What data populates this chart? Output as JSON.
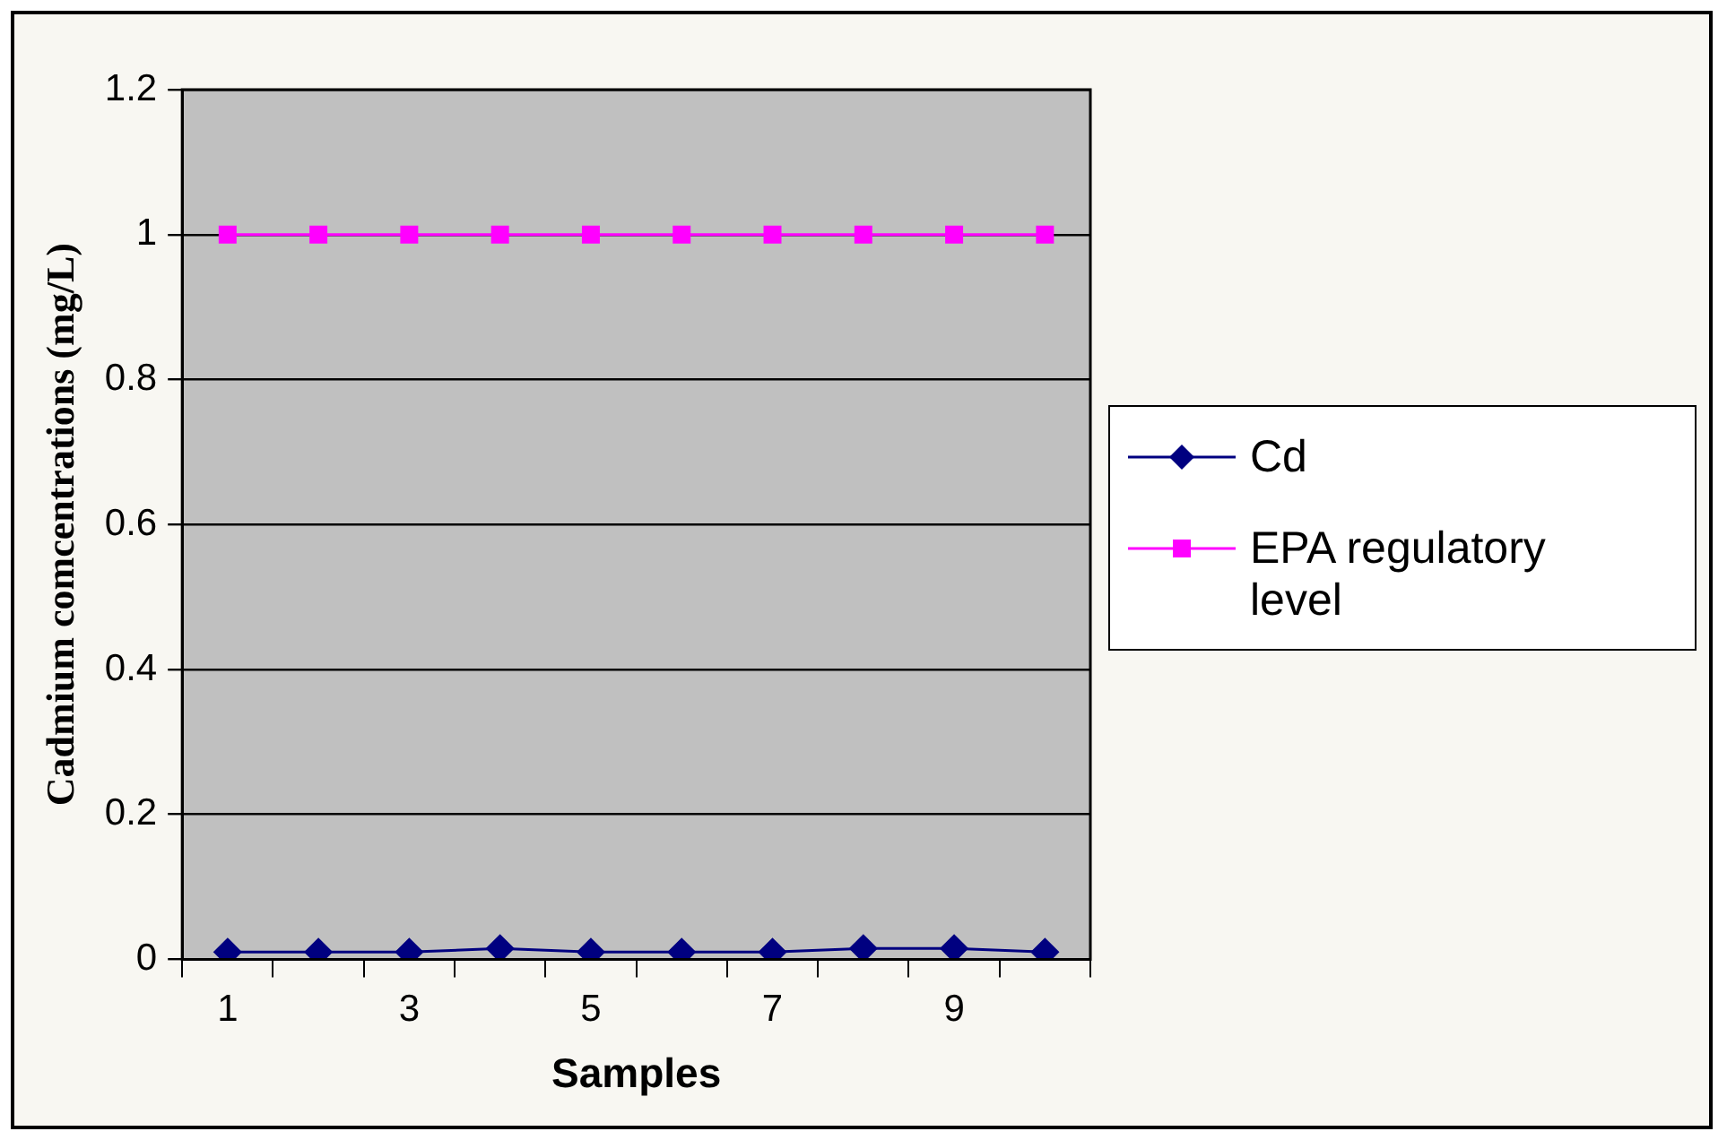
{
  "chart_data": {
    "type": "line",
    "xlabel": "Samples",
    "ylabel": "Cadmium comcentrations (mg/L)",
    "categories": [
      "1",
      null,
      "3",
      null,
      "5",
      null,
      "7",
      null,
      "9",
      null
    ],
    "series": [
      {
        "name": "Cd",
        "color": "#000080",
        "marker": "diamond",
        "values": [
          0.01,
          0.01,
          0.01,
          0.015,
          0.01,
          0.01,
          0.01,
          0.015,
          0.015,
          0.01
        ]
      },
      {
        "name": "EPA regulatory level",
        "color": "#ff00ff",
        "marker": "square",
        "values": [
          1,
          1,
          1,
          1,
          1,
          1,
          1,
          1,
          1,
          1
        ]
      }
    ],
    "ylim": [
      0,
      1.2
    ],
    "yticks": [
      0,
      0.2,
      0.4,
      0.6,
      0.8,
      1,
      {
        "value": 1.2,
        "label": "1.2"
      }
    ],
    "grid": "y",
    "legend": "right",
    "line_style": "solid"
  }
}
